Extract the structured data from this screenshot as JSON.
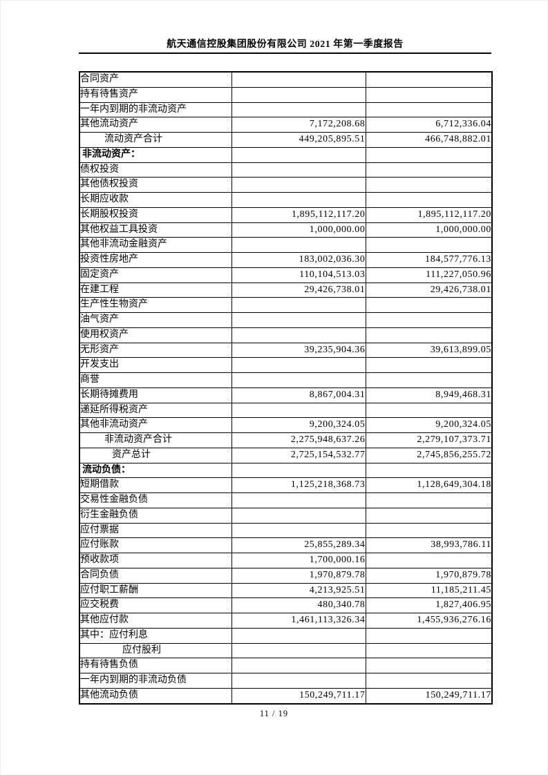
{
  "header": {
    "title": "航天通信控股集团股份有限公司 2021 年第一季度报告"
  },
  "footer": {
    "page_number": "11 / 19"
  },
  "table": {
    "rows": [
      {
        "label": "合同资产",
        "indent": 1,
        "value1": "",
        "value2": ""
      },
      {
        "label": "持有待售资产",
        "indent": 1,
        "value1": "",
        "value2": ""
      },
      {
        "label": "一年内到期的非流动资产",
        "indent": 1,
        "value1": "",
        "value2": ""
      },
      {
        "label": "其他流动资产",
        "indent": 1,
        "value1": "7,172,208.68",
        "value2": "6,712,336.04"
      },
      {
        "label": "流动资产合计",
        "indent": 2,
        "value1": "449,205,895.51",
        "value2": "466,748,882.01"
      },
      {
        "label": "非流动资产：",
        "indent": 0,
        "value1": "",
        "value2": ""
      },
      {
        "label": "债权投资",
        "indent": 1,
        "value1": "",
        "value2": ""
      },
      {
        "label": "其他债权投资",
        "indent": 1,
        "value1": "",
        "value2": ""
      },
      {
        "label": "长期应收款",
        "indent": 1,
        "value1": "",
        "value2": ""
      },
      {
        "label": "长期股权投资",
        "indent": 1,
        "value1": "1,895,112,117.20",
        "value2": "1,895,112,117.20"
      },
      {
        "label": "其他权益工具投资",
        "indent": 1,
        "value1": "1,000,000.00",
        "value2": "1,000,000.00"
      },
      {
        "label": "其他非流动金融资产",
        "indent": 1,
        "value1": "",
        "value2": ""
      },
      {
        "label": "投资性房地产",
        "indent": 1,
        "value1": "183,002,036.30",
        "value2": "184,577,776.13"
      },
      {
        "label": "固定资产",
        "indent": 1,
        "value1": "110,104,513.03",
        "value2": "111,227,050.96"
      },
      {
        "label": "在建工程",
        "indent": 1,
        "value1": "29,426,738.01",
        "value2": "29,426,738.01"
      },
      {
        "label": "生产性生物资产",
        "indent": 1,
        "value1": "",
        "value2": ""
      },
      {
        "label": "油气资产",
        "indent": 1,
        "value1": "",
        "value2": ""
      },
      {
        "label": "使用权资产",
        "indent": 1,
        "value1": "",
        "value2": ""
      },
      {
        "label": "无形资产",
        "indent": 1,
        "value1": "39,235,904.36",
        "value2": "39,613,899.05"
      },
      {
        "label": "开发支出",
        "indent": 1,
        "value1": "",
        "value2": ""
      },
      {
        "label": "商誉",
        "indent": 1,
        "value1": "",
        "value2": ""
      },
      {
        "label": "长期待摊费用",
        "indent": 1,
        "value1": "8,867,004.31",
        "value2": "8,949,468.31"
      },
      {
        "label": "递延所得税资产",
        "indent": 1,
        "value1": "",
        "value2": ""
      },
      {
        "label": "其他非流动资产",
        "indent": 1,
        "value1": "9,200,324.05",
        "value2": "9,200,324.05"
      },
      {
        "label": "非流动资产合计",
        "indent": 2,
        "value1": "2,275,948,637.26",
        "value2": "2,279,107,373.71"
      },
      {
        "label": "资产总计",
        "indent": 3,
        "value1": "2,725,154,532.77",
        "value2": "2,745,856,255.72"
      },
      {
        "label": "流动负债：",
        "indent": 0,
        "value1": "",
        "value2": ""
      },
      {
        "label": "短期借款",
        "indent": 1,
        "value1": "1,125,218,368.73",
        "value2": "1,128,649,304.18"
      },
      {
        "label": "交易性金融负债",
        "indent": 1,
        "value1": "",
        "value2": ""
      },
      {
        "label": "衍生金融负债",
        "indent": 1,
        "value1": "",
        "value2": ""
      },
      {
        "label": "应付票据",
        "indent": 1,
        "value1": "",
        "value2": ""
      },
      {
        "label": "应付账款",
        "indent": 1,
        "value1": "25,855,289.34",
        "value2": "38,993,786.11"
      },
      {
        "label": "预收款项",
        "indent": 1,
        "value1": "1,700,000.16",
        "value2": ""
      },
      {
        "label": "合同负债",
        "indent": 1,
        "value1": "1,970,879.78",
        "value2": "1,970,879.78"
      },
      {
        "label": "应付职工薪酬",
        "indent": 1,
        "value1": "4,213,925.51",
        "value2": "11,185,211.45"
      },
      {
        "label": "应交税费",
        "indent": 1,
        "value1": "480,340.78",
        "value2": "1,827,406.95"
      },
      {
        "label": "其他应付款",
        "indent": 1,
        "value1": "1,461,113,326.34",
        "value2": "1,455,936,276.16"
      },
      {
        "label": "其中：应付利息",
        "indent": 1,
        "value1": "",
        "value2": ""
      },
      {
        "label": "应付股利",
        "indent": 4,
        "value1": "",
        "value2": ""
      },
      {
        "label": "持有待售负债",
        "indent": 1,
        "value1": "",
        "value2": ""
      },
      {
        "label": "一年内到期的非流动负债",
        "indent": 1,
        "value1": "",
        "value2": ""
      },
      {
        "label": "其他流动负债",
        "indent": 1,
        "value1": "150,249,711.17",
        "value2": "150,249,711.17"
      }
    ]
  }
}
